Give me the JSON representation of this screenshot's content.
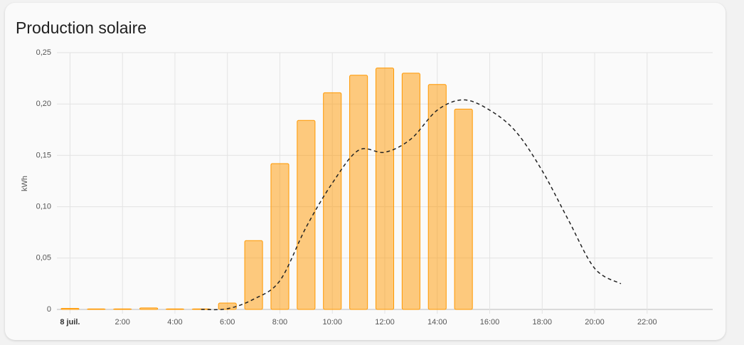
{
  "chart_data": {
    "type": "bar",
    "title": "Production solaire",
    "y_label": "kWh",
    "xlim": [
      -0.5,
      24.5
    ],
    "ylim": [
      0,
      0.25
    ],
    "xticks": [
      {
        "value": 0,
        "label": "8 juil."
      },
      {
        "value": 2,
        "label": "2:00"
      },
      {
        "value": 4,
        "label": "4:00"
      },
      {
        "value": 6,
        "label": "6:00"
      },
      {
        "value": 8,
        "label": "8:00"
      },
      {
        "value": 10,
        "label": "10:00"
      },
      {
        "value": 12,
        "label": "12:00"
      },
      {
        "value": 14,
        "label": "14:00"
      },
      {
        "value": 16,
        "label": "16:00"
      },
      {
        "value": 18,
        "label": "18:00"
      },
      {
        "value": 20,
        "label": "20:00"
      },
      {
        "value": 22,
        "label": "22:00"
      }
    ],
    "yticks": [
      0,
      {
        "value": 0.05,
        "label": "0,05"
      },
      {
        "value": 0.1,
        "label": "0,10"
      },
      {
        "value": 0.15,
        "label": "0,15"
      },
      {
        "value": 0.2,
        "label": "0,20"
      },
      {
        "value": 0.25,
        "label": "0,25"
      }
    ],
    "grid": true,
    "series": [
      {
        "type": "bar",
        "color": "#ff9800",
        "x": [
          0,
          1,
          2,
          3,
          4,
          5,
          6,
          7,
          8,
          9,
          10,
          11,
          12,
          13,
          14,
          15
        ],
        "values": [
          0.001,
          0.0005,
          0.0005,
          0.0015,
          0.0005,
          0.0005,
          0.0062,
          0.067,
          0.142,
          0.184,
          0.211,
          0.228,
          0.235,
          0.23,
          0.219,
          0.195
        ]
      },
      {
        "type": "line",
        "color": "#222222",
        "dashed": true,
        "x": [
          5,
          6,
          7,
          8,
          9,
          10,
          11,
          12,
          13,
          14,
          15,
          16,
          17,
          18,
          19,
          20,
          21
        ],
        "values": [
          0,
          0.0007,
          0.01,
          0.028,
          0.08,
          0.123,
          0.155,
          0.153,
          0.166,
          0.194,
          0.204,
          0.194,
          0.173,
          0.135,
          0.087,
          0.04,
          0.025
        ]
      }
    ]
  }
}
